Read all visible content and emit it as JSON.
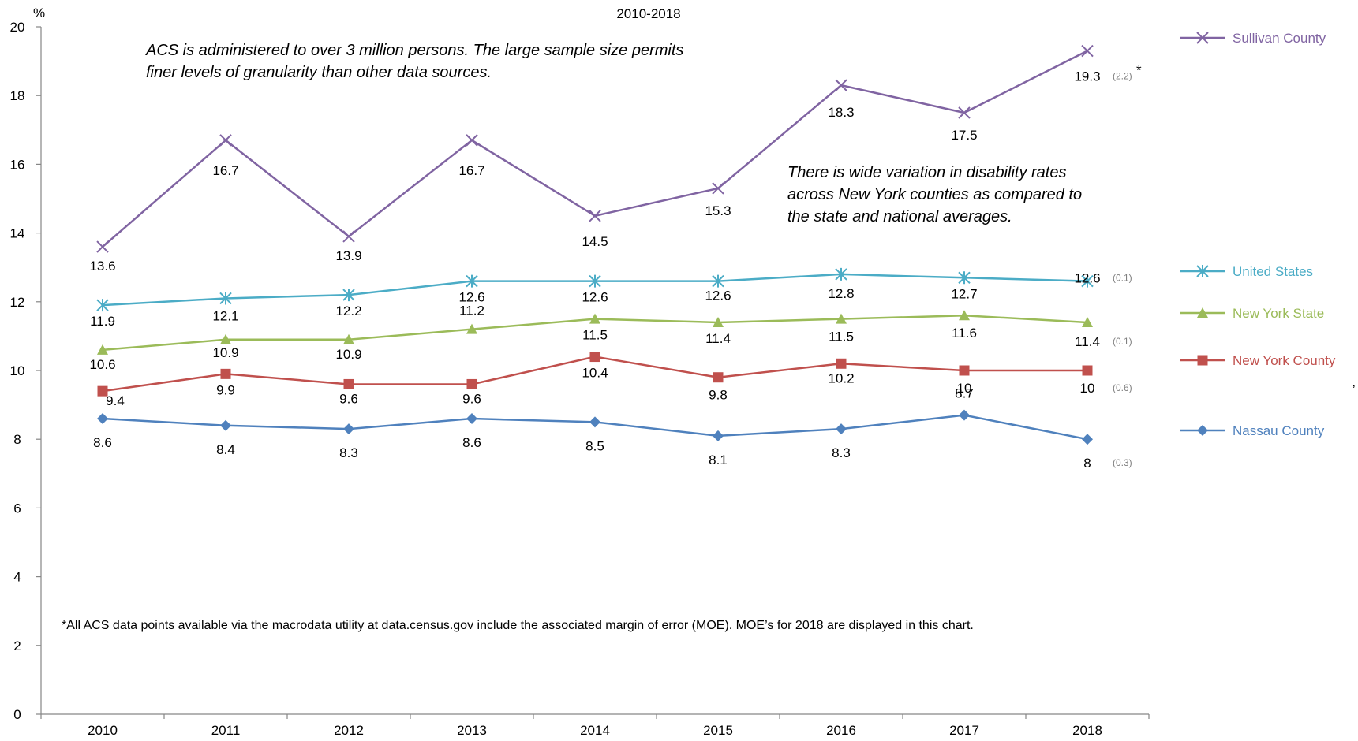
{
  "chart_data": {
    "type": "line",
    "subtitle": "2010-2018",
    "y_unit": "%",
    "ylim": [
      0,
      20
    ],
    "y_ticks": [
      0,
      2,
      4,
      6,
      8,
      10,
      12,
      14,
      16,
      18,
      20
    ],
    "categories": [
      "2010",
      "2011",
      "2012",
      "2013",
      "2014",
      "2015",
      "2016",
      "2017",
      "2018"
    ],
    "grid": false,
    "legend_position": "right",
    "series": [
      {
        "name": "Sullivan County",
        "color": "#8064a2",
        "marker": "x",
        "values": [
          13.6,
          16.7,
          13.9,
          16.7,
          14.5,
          15.3,
          18.3,
          17.5,
          19.3
        ],
        "moe_2018": "(2.2)",
        "moe_suffix": "*"
      },
      {
        "name": "United States",
        "color": "#4bacc6",
        "marker": "asterisk",
        "values": [
          11.9,
          12.1,
          12.2,
          12.6,
          12.6,
          12.6,
          12.8,
          12.7,
          12.6
        ],
        "moe_2018": "(0.1)"
      },
      {
        "name": "New York State",
        "color": "#9bbb59",
        "marker": "triangle",
        "values": [
          10.6,
          10.9,
          10.9,
          11.2,
          11.5,
          11.4,
          11.5,
          11.6,
          11.4
        ],
        "moe_2018": "(0.1)"
      },
      {
        "name": "New York County",
        "color": "#c0504d",
        "marker": "square",
        "values": [
          9.4,
          9.9,
          9.6,
          9.6,
          10.4,
          9.8,
          10.2,
          10,
          10
        ],
        "moe_2018": "(0.6)"
      },
      {
        "name": "Nassau County",
        "color": "#4f81bd",
        "marker": "diamond",
        "values": [
          8.6,
          8.4,
          8.3,
          8.6,
          8.5,
          8.1,
          8.3,
          8.7,
          8
        ],
        "moe_2018": "(0.3)"
      }
    ],
    "annotations": {
      "note_top_line1": "ACS is administered to over 3 million persons. The large sample size permits",
      "note_top_line2": "finer levels of granularity than other data sources.",
      "note_mid_line1": "There is wide variation in disability rates",
      "note_mid_line2": "across New York counties as compared to",
      "note_mid_line3": "the state and national averages.",
      "footnote": "*All ACS data points  available via the macrodata  utility at data.census.gov include the associated margin of error (MOE). MOE’s for 2018 are displayed in this chart.",
      "stray_mark": ","
    }
  }
}
